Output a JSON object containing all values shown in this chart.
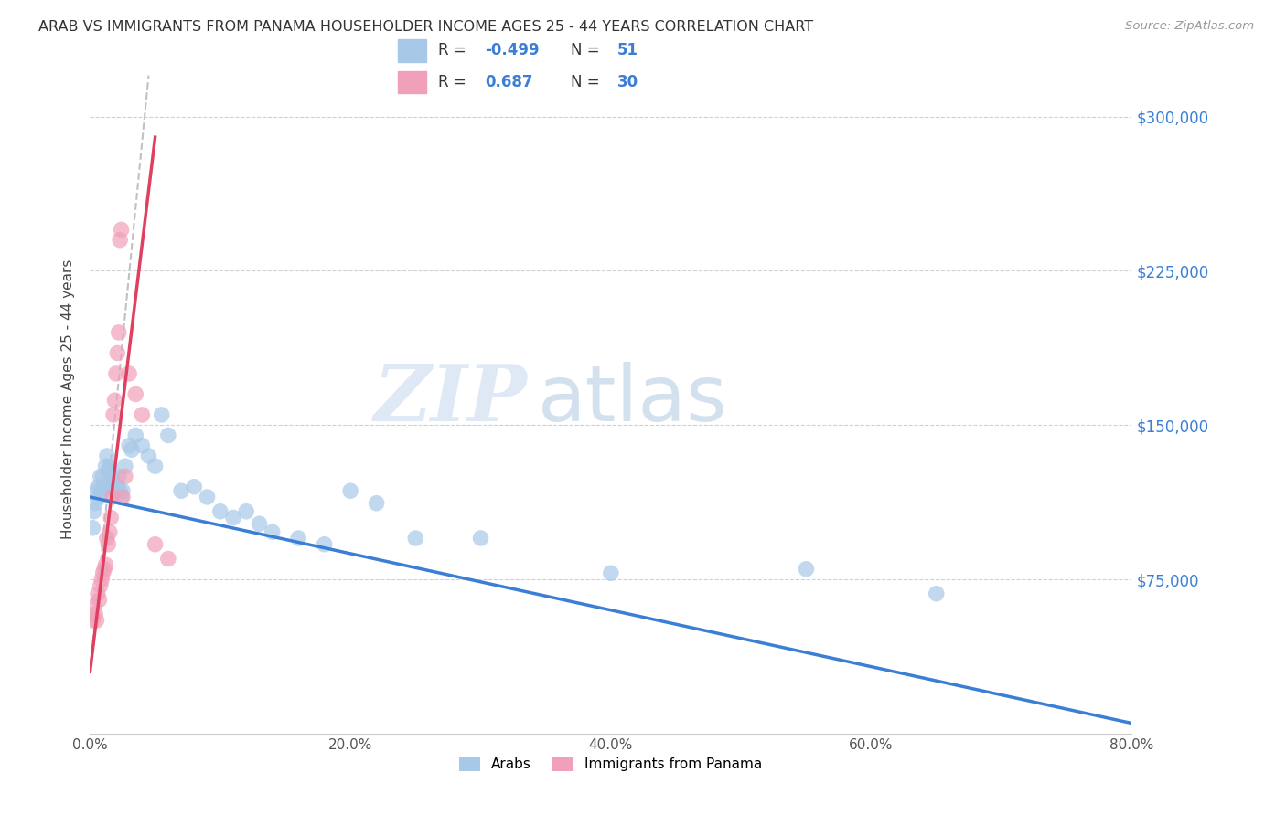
{
  "title": "ARAB VS IMMIGRANTS FROM PANAMA HOUSEHOLDER INCOME AGES 25 - 44 YEARS CORRELATION CHART",
  "source": "Source: ZipAtlas.com",
  "ylabel": "Householder Income Ages 25 - 44 years",
  "xlabel_ticks": [
    "0.0%",
    "20.0%",
    "40.0%",
    "60.0%",
    "80.0%"
  ],
  "xlabel_vals": [
    0.0,
    20.0,
    40.0,
    60.0,
    80.0
  ],
  "ytick_labels": [
    "$300,000",
    "$225,000",
    "$150,000",
    "$75,000"
  ],
  "ytick_vals": [
    300000,
    225000,
    150000,
    75000
  ],
  "xlim": [
    0.0,
    80.0
  ],
  "ylim": [
    0,
    325000
  ],
  "arab_R": -0.499,
  "arab_N": 51,
  "panama_R": 0.687,
  "panama_N": 30,
  "arab_color": "#a8c8e8",
  "panama_color": "#f0a0b8",
  "arab_line_color": "#3a7fd5",
  "panama_line_color": "#e04060",
  "dashed_line_color": "#c0c0c8",
  "watermark_zip": "ZIP",
  "watermark_atlas": "atlas",
  "legend_arab": "Arabs",
  "legend_panama": "Immigrants from Panama",
  "arab_x": [
    0.2,
    0.3,
    0.4,
    0.5,
    0.6,
    0.7,
    0.8,
    0.9,
    1.0,
    1.1,
    1.2,
    1.3,
    1.4,
    1.5,
    1.5,
    1.6,
    1.7,
    1.8,
    1.9,
    2.0,
    2.1,
    2.2,
    2.3,
    2.4,
    2.5,
    2.7,
    3.0,
    3.2,
    3.5,
    4.0,
    4.5,
    5.0,
    5.5,
    6.0,
    7.0,
    8.0,
    9.0,
    10.0,
    11.0,
    12.0,
    13.0,
    14.0,
    16.0,
    18.0,
    20.0,
    22.0,
    25.0,
    30.0,
    40.0,
    55.0,
    65.0
  ],
  "arab_y": [
    100000,
    108000,
    112000,
    118000,
    120000,
    115000,
    125000,
    118000,
    125000,
    120000,
    130000,
    135000,
    128000,
    130000,
    122000,
    120000,
    125000,
    120000,
    118000,
    118000,
    120000,
    125000,
    118000,
    115000,
    118000,
    130000,
    140000,
    138000,
    145000,
    140000,
    135000,
    130000,
    155000,
    145000,
    118000,
    120000,
    115000,
    108000,
    105000,
    108000,
    102000,
    98000,
    95000,
    92000,
    118000,
    112000,
    95000,
    95000,
    78000,
    80000,
    68000
  ],
  "panama_x": [
    0.2,
    0.3,
    0.4,
    0.5,
    0.6,
    0.7,
    0.8,
    0.9,
    1.0,
    1.1,
    1.2,
    1.3,
    1.4,
    1.5,
    1.6,
    1.7,
    1.8,
    1.9,
    2.0,
    2.1,
    2.2,
    2.3,
    2.4,
    2.5,
    2.7,
    3.0,
    3.5,
    4.0,
    5.0,
    6.0
  ],
  "panama_y": [
    55000,
    62000,
    58000,
    55000,
    68000,
    65000,
    72000,
    75000,
    78000,
    80000,
    82000,
    95000,
    92000,
    98000,
    105000,
    115000,
    155000,
    162000,
    175000,
    185000,
    195000,
    240000,
    245000,
    115000,
    125000,
    175000,
    165000,
    155000,
    92000,
    85000
  ],
  "arab_line_x0": 0,
  "arab_line_y0": 115000,
  "arab_line_x1": 80,
  "arab_line_y1": 5000,
  "panama_line_x0": 0,
  "panama_line_y0": 30000,
  "panama_line_x1": 5.0,
  "panama_line_y1": 290000,
  "dash_line_x0": 0,
  "dash_line_y0": 30000,
  "dash_line_x1": 4.5,
  "dash_line_y1": 320000
}
